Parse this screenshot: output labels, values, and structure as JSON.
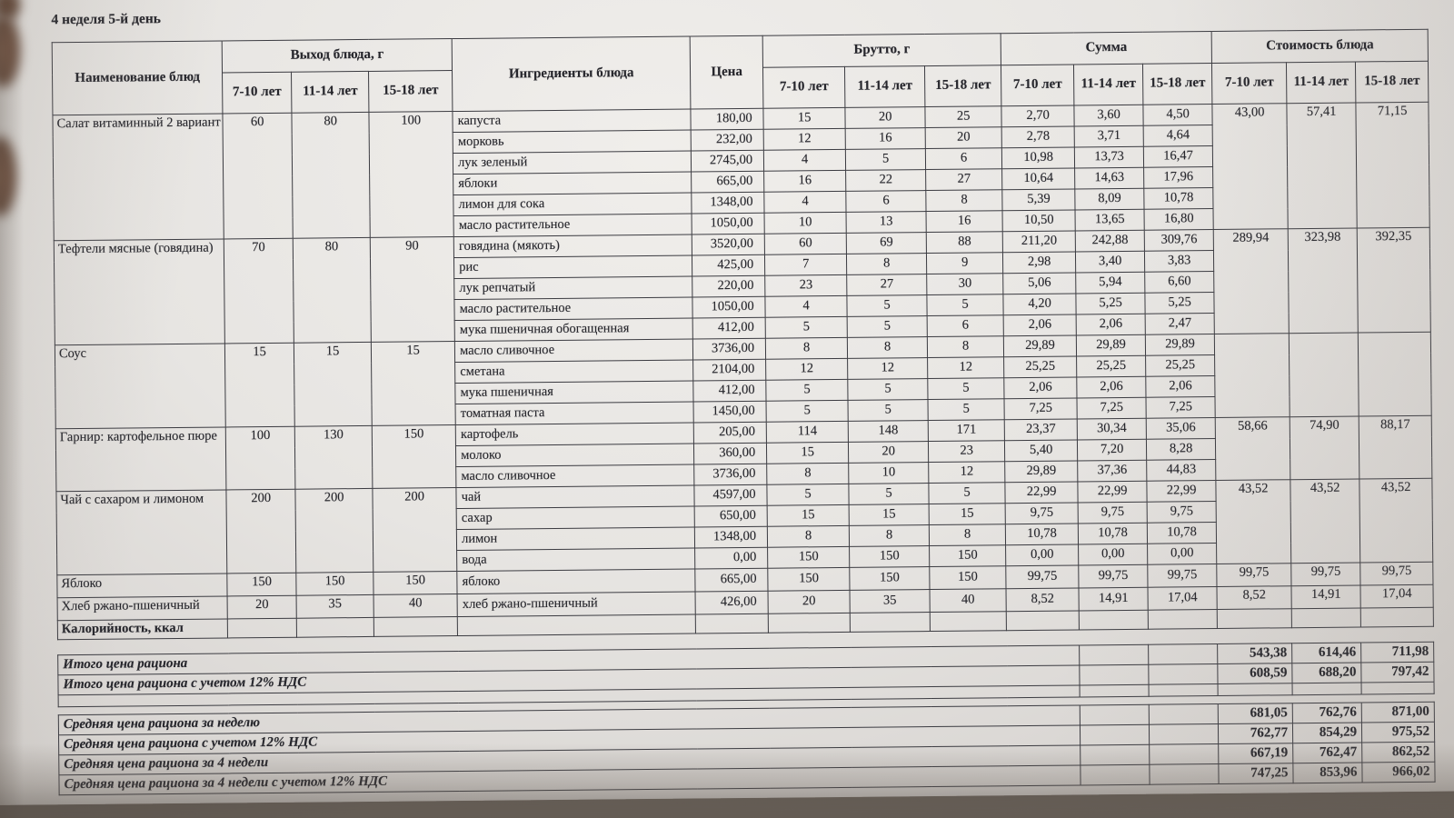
{
  "page_title": "4 неделя 5-й день",
  "table": {
    "headers": {
      "dish": "Наименование блюд",
      "output_group": "Выход блюда, г",
      "ingredients": "Ингредиенты блюда",
      "price": "Цена",
      "brutto_group": "Брутто, г",
      "sum_group": "Сумма",
      "cost_group": "Стоимость блюда",
      "age_groups": [
        "7-10 лет",
        "11-14 лет",
        "15-18 лет"
      ]
    },
    "dishes": [
      {
        "name": "Салат витаминный 2 вариант",
        "output": [
          "60",
          "80",
          "100"
        ],
        "cost": [
          "43,00",
          "57,41",
          "71,15"
        ],
        "ingredients": [
          {
            "name": "капуста",
            "price": "180,00",
            "brutto": [
              "15",
              "20",
              "25"
            ],
            "sum": [
              "2,70",
              "3,60",
              "4,50"
            ]
          },
          {
            "name": "морковь",
            "price": "232,00",
            "brutto": [
              "12",
              "16",
              "20"
            ],
            "sum": [
              "2,78",
              "3,71",
              "4,64"
            ]
          },
          {
            "name": "лук зеленый",
            "price": "2745,00",
            "brutto": [
              "4",
              "5",
              "6"
            ],
            "sum": [
              "10,98",
              "13,73",
              "16,47"
            ]
          },
          {
            "name": "яблоки",
            "price": "665,00",
            "brutto": [
              "16",
              "22",
              "27"
            ],
            "sum": [
              "10,64",
              "14,63",
              "17,96"
            ]
          },
          {
            "name": "лимон для сока",
            "price": "1348,00",
            "brutto": [
              "4",
              "6",
              "8"
            ],
            "sum": [
              "5,39",
              "8,09",
              "10,78"
            ]
          },
          {
            "name": "масло растительное",
            "price": "1050,00",
            "brutto": [
              "10",
              "13",
              "16"
            ],
            "sum": [
              "10,50",
              "13,65",
              "16,80"
            ]
          }
        ]
      },
      {
        "name": "Тефтели мясные (говядина)",
        "output": [
          "70",
          "80",
          "90"
        ],
        "cost": [
          "289,94",
          "323,98",
          "392,35"
        ],
        "ingredients": [
          {
            "name": "говядина (мякоть)",
            "price": "3520,00",
            "brutto": [
              "60",
              "69",
              "88"
            ],
            "sum": [
              "211,20",
              "242,88",
              "309,76"
            ]
          },
          {
            "name": "рис",
            "price": "425,00",
            "brutto": [
              "7",
              "8",
              "9"
            ],
            "sum": [
              "2,98",
              "3,40",
              "3,83"
            ]
          },
          {
            "name": "лук репчатый",
            "price": "220,00",
            "brutto": [
              "23",
              "27",
              "30"
            ],
            "sum": [
              "5,06",
              "5,94",
              "6,60"
            ]
          },
          {
            "name": "масло растительное",
            "price": "1050,00",
            "brutto": [
              "4",
              "5",
              "5"
            ],
            "sum": [
              "4,20",
              "5,25",
              "5,25"
            ]
          },
          {
            "name": "мука пшеничная обогащенная",
            "price": "412,00",
            "brutto": [
              "5",
              "5",
              "6"
            ],
            "sum": [
              "2,06",
              "2,06",
              "2,47"
            ]
          }
        ]
      },
      {
        "name": "Соус",
        "output": [
          "15",
          "15",
          "15"
        ],
        "cost": [
          "",
          "",
          ""
        ],
        "ingredients": [
          {
            "name": "масло сливочное",
            "price": "3736,00",
            "brutto": [
              "8",
              "8",
              "8"
            ],
            "sum": [
              "29,89",
              "29,89",
              "29,89"
            ]
          },
          {
            "name": "сметана",
            "price": "2104,00",
            "brutto": [
              "12",
              "12",
              "12"
            ],
            "sum": [
              "25,25",
              "25,25",
              "25,25"
            ]
          },
          {
            "name": "мука пшеничная",
            "price": "412,00",
            "brutto": [
              "5",
              "5",
              "5"
            ],
            "sum": [
              "2,06",
              "2,06",
              "2,06"
            ]
          },
          {
            "name": "томатная паста",
            "price": "1450,00",
            "brutto": [
              "5",
              "5",
              "5"
            ],
            "sum": [
              "7,25",
              "7,25",
              "7,25"
            ]
          }
        ]
      },
      {
        "name": "Гарнир:  картофельное пюре",
        "output": [
          "100",
          "130",
          "150"
        ],
        "cost": [
          "58,66",
          "74,90",
          "88,17"
        ],
        "ingredients": [
          {
            "name": "картофель",
            "price": "205,00",
            "brutto": [
              "114",
              "148",
              "171"
            ],
            "sum": [
              "23,37",
              "30,34",
              "35,06"
            ]
          },
          {
            "name": "молоко",
            "price": "360,00",
            "brutto": [
              "15",
              "20",
              "23"
            ],
            "sum": [
              "5,40",
              "7,20",
              "8,28"
            ]
          },
          {
            "name": "масло сливочное",
            "price": "3736,00",
            "brutto": [
              "8",
              "10",
              "12"
            ],
            "sum": [
              "29,89",
              "37,36",
              "44,83"
            ]
          }
        ]
      },
      {
        "name": "Чай с сахаром и лимоном",
        "output": [
          "200",
          "200",
          "200"
        ],
        "cost": [
          "43,52",
          "43,52",
          "43,52"
        ],
        "ingredients": [
          {
            "name": "чай",
            "price": "4597,00",
            "brutto": [
              "5",
              "5",
              "5"
            ],
            "sum": [
              "22,99",
              "22,99",
              "22,99"
            ]
          },
          {
            "name": "сахар",
            "price": "650,00",
            "brutto": [
              "15",
              "15",
              "15"
            ],
            "sum": [
              "9,75",
              "9,75",
              "9,75"
            ]
          },
          {
            "name": "лимон",
            "price": "1348,00",
            "brutto": [
              "8",
              "8",
              "8"
            ],
            "sum": [
              "10,78",
              "10,78",
              "10,78"
            ]
          },
          {
            "name": "вода",
            "price": "0,00",
            "brutto": [
              "150",
              "150",
              "150"
            ],
            "sum": [
              "0,00",
              "0,00",
              "0,00"
            ]
          }
        ]
      },
      {
        "name": "Яблоко",
        "output": [
          "150",
          "150",
          "150"
        ],
        "cost": [
          "99,75",
          "99,75",
          "99,75"
        ],
        "ingredients": [
          {
            "name": "яблоко",
            "price": "665,00",
            "brutto": [
              "150",
              "150",
              "150"
            ],
            "sum": [
              "99,75",
              "99,75",
              "99,75"
            ]
          }
        ]
      },
      {
        "name": "Хлеб ржано-пшеничный",
        "output": [
          "20",
          "35",
          "40"
        ],
        "cost": [
          "8,52",
          "14,91",
          "17,04"
        ],
        "ingredients": [
          {
            "name": "хлеб ржано-пшеничный",
            "price": "426,00",
            "brutto": [
              "20",
              "35",
              "40"
            ],
            "sum": [
              "8,52",
              "14,91",
              "17,04"
            ]
          }
        ]
      }
    ],
    "calories_row_label": "Калорийность, ккал",
    "summary_totals": [
      {
        "label": "Итого цена рациона",
        "values": [
          "543,38",
          "614,46",
          "711,98"
        ],
        "blank": false
      },
      {
        "label": "Итого цена рациона с учетом 12% НДС",
        "values": [
          "608,59",
          "688,20",
          "797,42"
        ],
        "blank": false
      },
      {
        "label": "",
        "values": [
          "",
          "",
          ""
        ],
        "blank": true
      }
    ],
    "summary_averages": [
      {
        "label": "Средняя цена рациона за неделю",
        "values": [
          "681,05",
          "762,76",
          "871,00"
        ],
        "blank": false
      },
      {
        "label": "Средняя цена рациона с учетом 12% НДС",
        "values": [
          "762,77",
          "854,29",
          "975,52"
        ],
        "blank": false
      },
      {
        "label": "Средняя цена рациона за 4 недели",
        "values": [
          "667,19",
          "762,47",
          "862,52"
        ],
        "blank": false
      },
      {
        "label": "Средняя цена рациона за 4 недели с учетом 12% НДС",
        "values": [
          "747,25",
          "853,96",
          "966,02"
        ],
        "blank": false
      }
    ]
  }
}
